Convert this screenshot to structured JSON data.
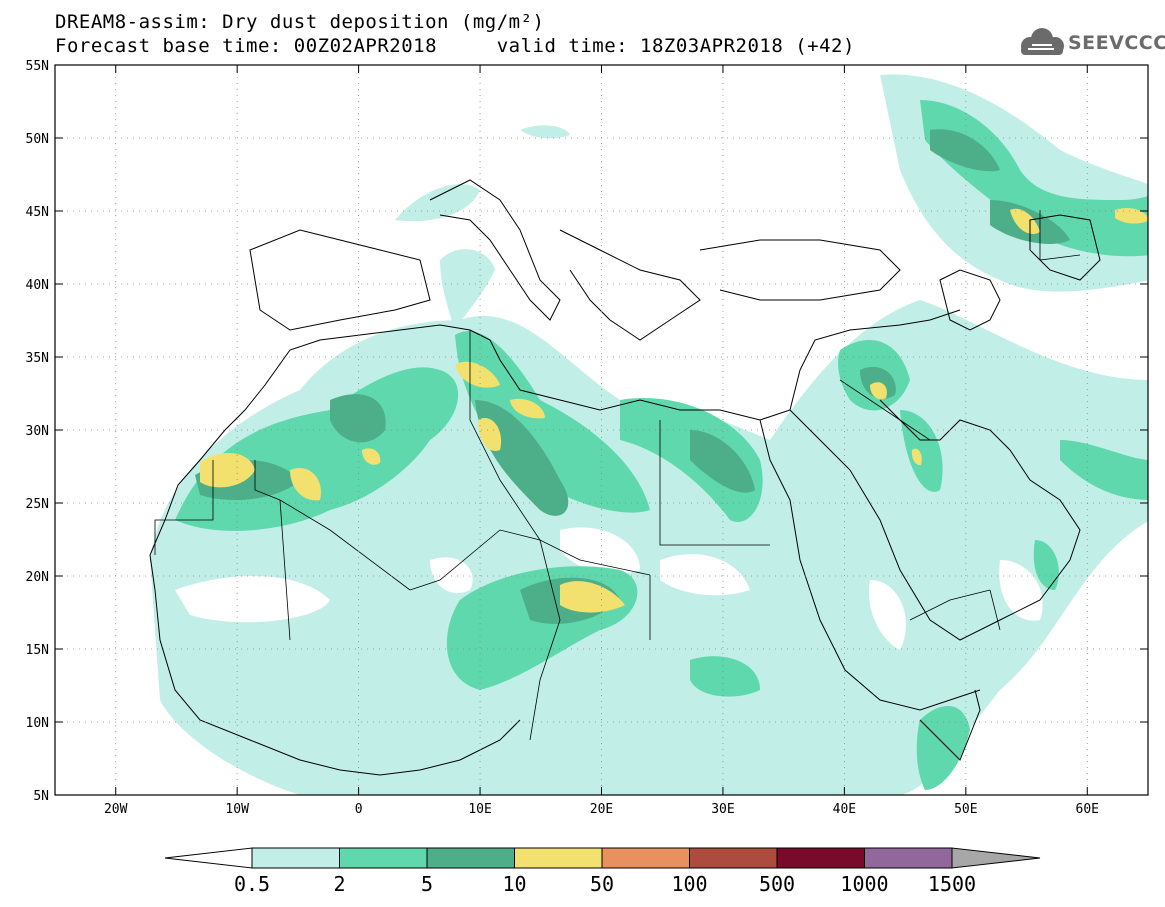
{
  "header": {
    "title_line1": "DREAM8-assim: Dry dust deposition (mg/m²)",
    "title_line2": "Forecast base time: 00Z02APR2018     valid time: 18Z03APR2018 (+42)",
    "logo_text": "SEEVCCC"
  },
  "map": {
    "lon_range": [
      -25,
      65
    ],
    "lat_range": [
      5,
      55
    ],
    "lat_ticks": [
      "55N",
      "50N",
      "45N",
      "40N",
      "35N",
      "30N",
      "25N",
      "20N",
      "15N",
      "10N",
      "5N"
    ],
    "lon_ticks": [
      "20W",
      "10W",
      "0",
      "10E",
      "20E",
      "30E",
      "40E",
      "50E",
      "60E"
    ],
    "grid": "dotted"
  },
  "legend": {
    "levels": [
      "0.5",
      "2",
      "5",
      "10",
      "50",
      "100",
      "500",
      "1000",
      "1500"
    ],
    "colors": [
      "#c1efe7",
      "#5fd8ae",
      "#4daf89",
      "#f2e16f",
      "#e8905e",
      "#ae4b3f",
      "#7a0a2c",
      "#91679c",
      "#a7a7a7"
    ],
    "under_color": "#ffffff",
    "over_color": "#a7a7a7"
  }
}
